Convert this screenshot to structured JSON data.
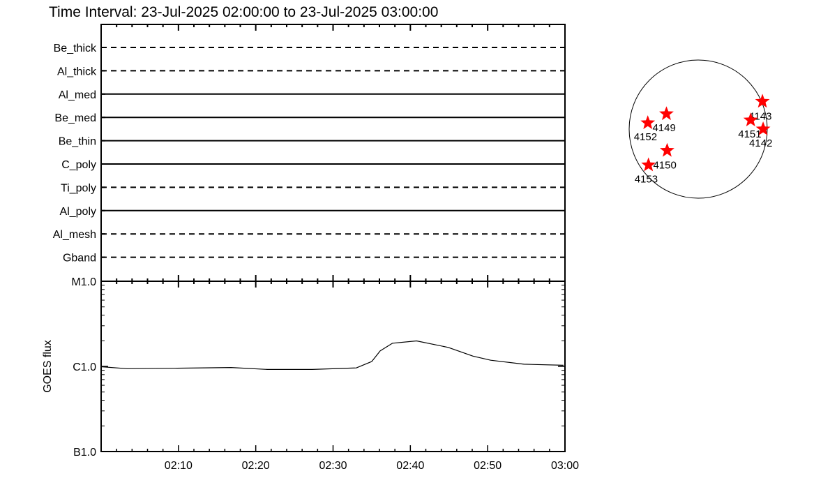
{
  "title": "Time Interval: 23-Jul-2025 02:00:00 to 23-Jul-2025 03:00:00",
  "chart_data": [
    {
      "type": "table",
      "rows": [
        {
          "label": "Be_thick",
          "style": "dashed"
        },
        {
          "label": "Al_thick",
          "style": "dashed"
        },
        {
          "label": "Al_med",
          "style": "solid"
        },
        {
          "label": "Be_med",
          "style": "solid"
        },
        {
          "label": "Be_thin",
          "style": "solid"
        },
        {
          "label": "C_poly",
          "style": "solid"
        },
        {
          "label": "Ti_poly",
          "style": "dashed"
        },
        {
          "label": "Al_poly",
          "style": "solid"
        },
        {
          "label": "Al_mesh",
          "style": "dashed"
        },
        {
          "label": "Gband",
          "style": "dashed"
        }
      ],
      "xlim": [
        "02:00",
        "03:00"
      ]
    },
    {
      "type": "line",
      "ylabel": "GOES flux",
      "yscale": "log",
      "ylim": [
        1e-07,
        1e-05
      ],
      "yticks": [
        {
          "value": 1e-05,
          "label": "M1.0"
        },
        {
          "value": 1e-06,
          "label": "C1.0"
        },
        {
          "value": 1e-07,
          "label": "B1.0"
        }
      ],
      "xlim": [
        "02:00",
        "03:00"
      ],
      "xticks": [
        "02:10",
        "02:20",
        "02:30",
        "02:40",
        "02:50",
        "03:00"
      ],
      "x_minutes": [
        0,
        3.4,
        9.5,
        16.8,
        21.5,
        27.3,
        33.0,
        35.0,
        36.1,
        37.7,
        40.8,
        44.9,
        48.1,
        50.4,
        54.7,
        59.8
      ],
      "y": [
        9.9e-07,
        9.4e-07,
        9.5e-07,
        9.7e-07,
        9.2e-07,
        9.2e-07,
        9.6e-07,
        1.14e-06,
        1.52e-06,
        1.87e-06,
        1.99e-06,
        1.67e-06,
        1.32e-06,
        1.18e-06,
        1.06e-06,
        1.03e-06
      ],
      "color": "#000000"
    },
    {
      "type": "scatter",
      "description_marker": "star",
      "color": "#ff0000",
      "regions": [
        {
          "label": "4143",
          "x": 0.93,
          "y": 0.4
        },
        {
          "label": "4149",
          "x": -0.46,
          "y": 0.22
        },
        {
          "label": "4152",
          "x": -0.73,
          "y": 0.09
        },
        {
          "label": "4151",
          "x": 0.76,
          "y": 0.13
        },
        {
          "label": "4142",
          "x": 0.94,
          "y": 0.0
        },
        {
          "label": "4150",
          "x": -0.45,
          "y": -0.31
        },
        {
          "label": "4153",
          "x": -0.72,
          "y": -0.52
        }
      ]
    }
  ]
}
